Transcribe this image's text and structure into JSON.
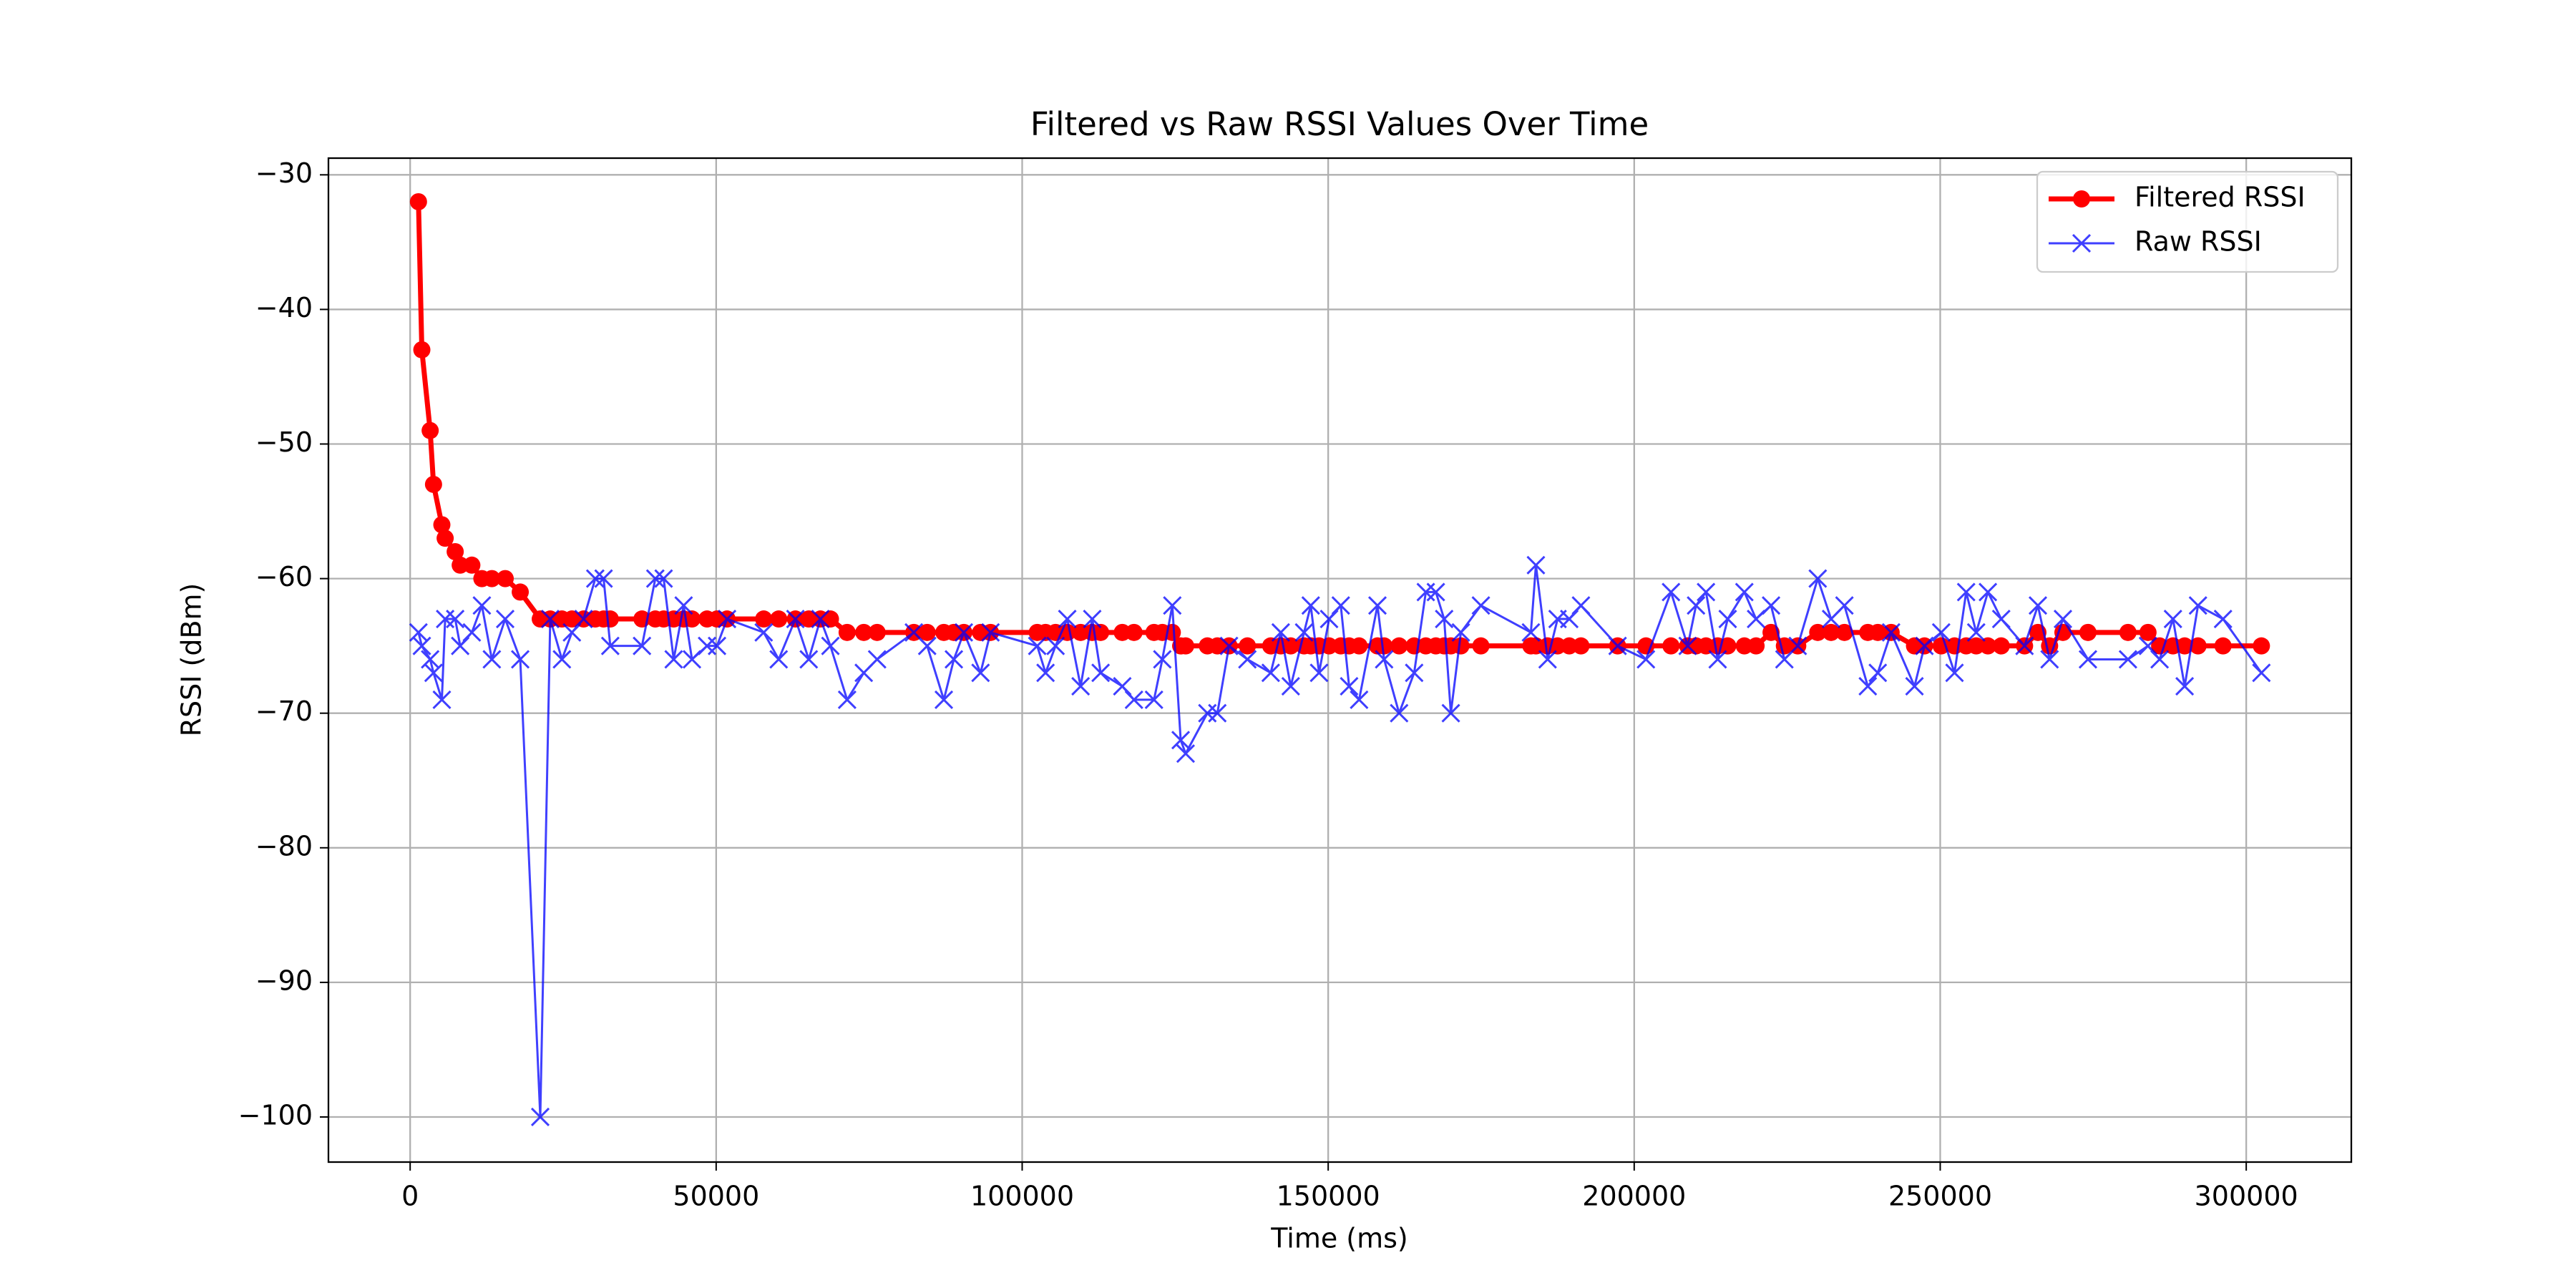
{
  "chart_data": {
    "type": "line",
    "title": "Filtered vs Raw RSSI Values Over Time",
    "x_label": "Time (ms)",
    "y_label": "RSSI (dBm)",
    "x": [
      1360,
      1910,
      3270,
      3820,
      5180,
      5720,
      7360,
      8180,
      10080,
      11720,
      13350,
      15530,
      17990,
      21260,
      22890,
      24800,
      26430,
      28340,
      30250,
      31610,
      32700,
      37880,
      40060,
      41420,
      43060,
      44690,
      46050,
      48510,
      50140,
      51780,
      57770,
      60220,
      62950,
      65130,
      67040,
      68670,
      71400,
      74120,
      76300,
      82300,
      84480,
      87200,
      88840,
      90470,
      93200,
      94830,
      102460,
      103820,
      105460,
      107370,
      109550,
      111450,
      112820,
      116360,
      118270,
      121540,
      122900,
      124530,
      125900,
      126710,
      130260,
      131890,
      133800,
      136800,
      140610,
      142250,
      143880,
      146060,
      147150,
      148510,
      150150,
      152060,
      153420,
      155050,
      158050,
      159140,
      161590,
      164050,
      165950,
      167590,
      168950,
      170040,
      171680,
      174950,
      183120,
      183940,
      185850,
      187480,
      189390,
      191300,
      197290,
      201920,
      206010,
      208740,
      210100,
      211730,
      213640,
      215280,
      218000,
      219910,
      222360,
      224540,
      226720,
      229990,
      232170,
      234350,
      238170,
      239800,
      241980,
      245800,
      247430,
      250160,
      252340,
      254240,
      255880,
      257790,
      259970,
      263780,
      265960,
      267870,
      270050,
      274140,
      280680,
      283950,
      285850,
      288030,
      289940,
      292120,
      296210,
      302480
    ],
    "series": [
      {
        "name": "Filtered RSSI",
        "color": "#ff0000",
        "marker": "o",
        "values": [
          -32,
          -43,
          -49,
          -53,
          -56,
          -57,
          -58,
          -59,
          -59,
          -60,
          -60,
          -60,
          -61,
          -63,
          -63,
          -63,
          -63,
          -63,
          -63,
          -63,
          -63,
          -63,
          -63,
          -63,
          -63,
          -63,
          -63,
          -63,
          -63,
          -63,
          -63,
          -63,
          -63,
          -63,
          -63,
          -63,
          -64,
          -64,
          -64,
          -64,
          -64,
          -64,
          -64,
          -64,
          -64,
          -64,
          -64,
          -64,
          -64,
          -64,
          -64,
          -64,
          -64,
          -64,
          -64,
          -64,
          -64,
          -64,
          -65,
          -65,
          -65,
          -65,
          -65,
          -65,
          -65,
          -65,
          -65,
          -65,
          -65,
          -65,
          -65,
          -65,
          -65,
          -65,
          -65,
          -65,
          -65,
          -65,
          -65,
          -65,
          -65,
          -65,
          -65,
          -65,
          -65,
          -65,
          -65,
          -65,
          -65,
          -65,
          -65,
          -65,
          -65,
          -65,
          -65,
          -65,
          -65,
          -65,
          -65,
          -65,
          -64,
          -65,
          -65,
          -64,
          -64,
          -64,
          -64,
          -64,
          -64,
          -65,
          -65,
          -65,
          -65,
          -65,
          -65,
          -65,
          -65,
          -65,
          -64,
          -65,
          -64,
          -64,
          -64,
          -64,
          -65,
          -65,
          -65,
          -65,
          -65,
          -65
        ]
      },
      {
        "name": "Raw RSSI",
        "color": "#0000ff",
        "marker": "x",
        "values": [
          -64,
          -65,
          -66,
          -67,
          -69,
          -63,
          -63,
          -65,
          -64,
          -62,
          -66,
          -63,
          -66,
          -100,
          -63,
          -66,
          -64,
          -63,
          -60,
          -60,
          -65,
          -65,
          -60,
          -60,
          -66,
          -62,
          -66,
          -65,
          -65,
          -63,
          -64,
          -66,
          -63,
          -66,
          -63,
          -65,
          -69,
          -67,
          -66,
          -64,
          -65,
          -69,
          -66,
          -64,
          -67,
          -64,
          -65,
          -67,
          -65,
          -63,
          -68,
          -63,
          -67,
          -68,
          -69,
          -69,
          -66,
          -62,
          -72,
          -73,
          -70,
          -70,
          -65,
          -66,
          -67,
          -64,
          -68,
          -64,
          -62,
          -67,
          -63,
          -62,
          -68,
          -69,
          -62,
          -66,
          -70,
          -67,
          -61,
          -61,
          -63,
          -70,
          -64,
          -62,
          -64,
          -59,
          -66,
          -63,
          -63,
          -62,
          -65,
          -66,
          -61,
          -65,
          -62,
          -61,
          -66,
          -63,
          -61,
          -63,
          -62,
          -66,
          -65,
          -60,
          -63,
          -62,
          -68,
          -67,
          -64,
          -68,
          -65,
          -64,
          -67,
          -61,
          -64,
          -61,
          -63,
          -65,
          -62,
          -66,
          -63,
          -66,
          -66,
          -65,
          -66,
          -63,
          -68,
          -62,
          -63,
          -67
        ]
      }
    ],
    "xlim": [
      -13350,
      317170
    ],
    "xticks": [
      0,
      50000,
      100000,
      150000,
      200000,
      250000,
      300000
    ],
    "ylim": [
      -103.35,
      -28.76
    ],
    "yticks": [
      {
        "value": -100,
        "label": "−100"
      },
      {
        "value": -90,
        "label": "−90"
      },
      {
        "value": -80,
        "label": "−80"
      },
      {
        "value": -70,
        "label": "−70"
      },
      {
        "value": -60,
        "label": "−60"
      },
      {
        "value": -50,
        "label": "−50"
      },
      {
        "value": -40,
        "label": "−40"
      },
      {
        "value": -30,
        "label": "−30"
      }
    ],
    "grid": true,
    "legend": "upper right"
  }
}
